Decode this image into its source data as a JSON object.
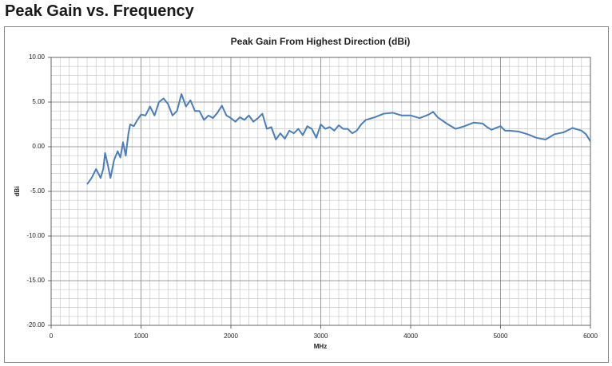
{
  "page_title": "Peak Gain vs. Frequency",
  "chart_data": {
    "type": "line",
    "title": "Peak Gain From Highest Direction (dBi)",
    "x_label": "MHz",
    "y_label": "dBi",
    "x": [
      400,
      450,
      500,
      550,
      580,
      600,
      630,
      660,
      700,
      740,
      770,
      800,
      830,
      860,
      880,
      920,
      960,
      1000,
      1050,
      1100,
      1150,
      1200,
      1250,
      1300,
      1350,
      1400,
      1450,
      1500,
      1550,
      1600,
      1650,
      1700,
      1750,
      1800,
      1850,
      1900,
      1950,
      2000,
      2050,
      2100,
      2150,
      2200,
      2250,
      2300,
      2350,
      2400,
      2450,
      2500,
      2550,
      2600,
      2650,
      2700,
      2750,
      2800,
      2850,
      2900,
      2950,
      3000,
      3050,
      3100,
      3150,
      3200,
      3250,
      3300,
      3350,
      3400,
      3450,
      3500,
      3600,
      3700,
      3800,
      3900,
      4000,
      4100,
      4200,
      4250,
      4300,
      4400,
      4500,
      4600,
      4700,
      4800,
      4850,
      4900,
      5000,
      5050,
      5100,
      5200,
      5300,
      5400,
      5500,
      5600,
      5700,
      5800,
      5900,
      5950,
      6000
    ],
    "series": [
      {
        "name": "Peak Gain",
        "color": "#4a7ebb",
        "values": [
          -4.2,
          -3.5,
          -2.5,
          -3.5,
          -2.5,
          -0.7,
          -2.0,
          -3.5,
          -1.5,
          -0.5,
          -1.2,
          0.5,
          -1.0,
          1.5,
          2.5,
          2.3,
          3.0,
          3.6,
          3.5,
          4.5,
          3.5,
          5.0,
          5.4,
          4.8,
          3.5,
          4.0,
          5.9,
          4.5,
          5.2,
          4.0,
          4.0,
          3.0,
          3.5,
          3.2,
          3.8,
          4.6,
          3.5,
          3.2,
          2.8,
          3.3,
          3.0,
          3.5,
          2.8,
          3.2,
          3.7,
          2.0,
          2.2,
          0.8,
          1.5,
          0.9,
          1.8,
          1.5,
          2.0,
          1.3,
          2.3,
          2.0,
          1.0,
          2.5,
          2.0,
          2.2,
          1.8,
          2.4,
          2.0,
          2.0,
          1.5,
          1.8,
          2.5,
          3.0,
          3.3,
          3.7,
          3.8,
          3.5,
          3.5,
          3.2,
          3.6,
          3.9,
          3.3,
          2.6,
          2.0,
          2.3,
          2.7,
          2.6,
          2.2,
          1.9,
          2.3,
          1.8,
          1.8,
          1.7,
          1.4,
          1.0,
          0.8,
          1.4,
          1.6,
          2.1,
          1.8,
          1.4,
          0.6
        ]
      }
    ],
    "xlim": [
      0,
      6000
    ],
    "xticks": [
      0,
      1000,
      2000,
      3000,
      4000,
      5000,
      6000
    ],
    "ylim": [
      -20,
      10
    ],
    "yticks": [
      {
        "value": 10,
        "label": "10.00"
      },
      {
        "value": 5,
        "label": "5.00"
      },
      {
        "value": 0,
        "label": "0.00"
      },
      {
        "value": -5,
        "label": "-5.00"
      },
      {
        "value": -10,
        "label": "-10.00"
      },
      {
        "value": -15,
        "label": "-15.00"
      },
      {
        "value": -20,
        "label": "-20.00"
      }
    ],
    "grid": true,
    "minor_grid": {
      "x": 100,
      "y": 1
    }
  }
}
